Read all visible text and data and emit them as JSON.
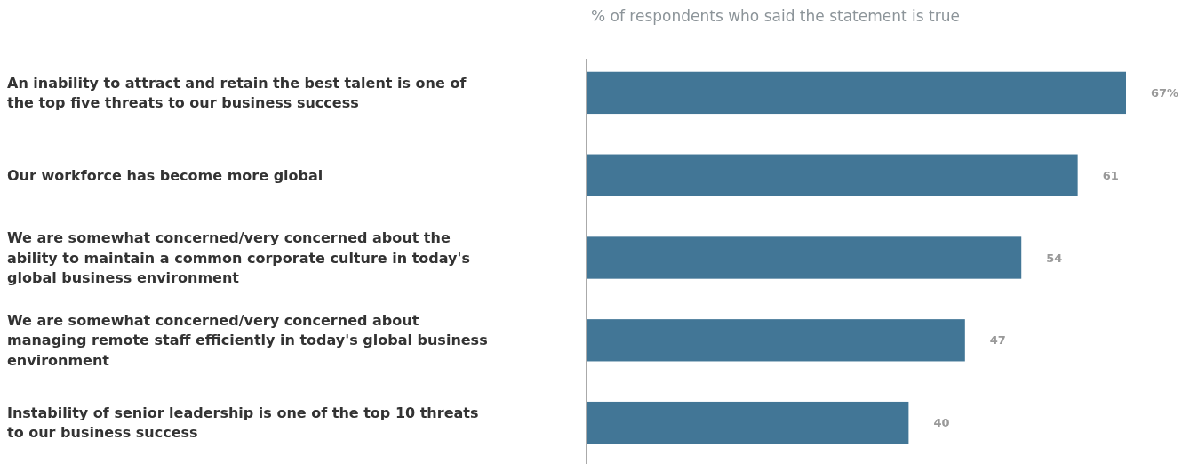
{
  "chart_data": {
    "type": "bar",
    "orientation": "horizontal",
    "title": "% of respondents who said the statement is true",
    "categories": [
      "An inability to attract and retain the best talent is one of the top five threats to our business success",
      "Our workforce has become more global",
      "We are somewhat concerned/very concerned about the ability to maintain a common corporate culture in today's global business environment",
      "We are somewhat concerned/very concerned about managing remote staff efficiently in today's global business environment",
      "Instability of senior leadership is one of the top 10 threats to our business success"
    ],
    "series": [
      {
        "color": "#427696",
        "values": [
          67,
          61,
          54,
          47,
          40
        ],
        "value_labels": [
          "67%",
          "61",
          "54",
          "47",
          "40"
        ]
      }
    ]
  }
}
